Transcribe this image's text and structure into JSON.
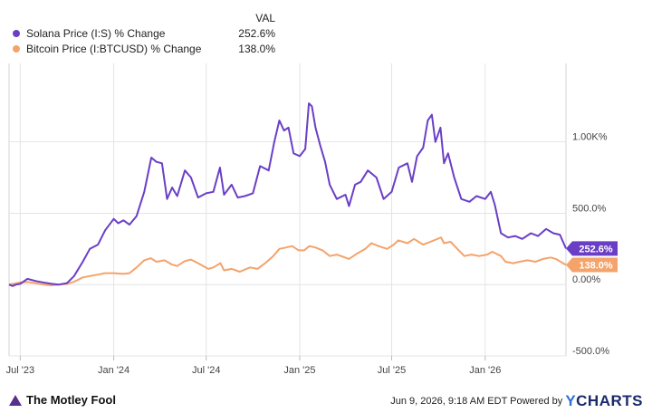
{
  "legend": {
    "header": "VAL",
    "items": [
      {
        "name": "Solana Price (I:S) % Change",
        "value": "252.6%",
        "color": "#6a3fc6"
      },
      {
        "name": "Bitcoin Price (I:BTCUSD) % Change",
        "value": "138.0%",
        "color": "#f4a36b"
      }
    ]
  },
  "footer": {
    "brand": "The Motley Fool",
    "timestamp": "Jun 9, 2026, 9:18 AM EDT",
    "powered_by": "Powered by",
    "provider": "CHARTS",
    "provider_y": "Y"
  },
  "chart_data": {
    "type": "line",
    "title": "",
    "xlabel": "",
    "ylabel": "",
    "ylim": [
      -500,
      1550
    ],
    "y_ticks": [
      {
        "value": 1000,
        "label": "1.00K%"
      },
      {
        "value": 500,
        "label": "500.0%"
      },
      {
        "value": 0,
        "label": "0.00%"
      },
      {
        "value": -500,
        "label": "-500.0%"
      }
    ],
    "x_range": [
      "2023-06-09",
      "2026-06-09"
    ],
    "x_ticks": [
      {
        "date": "2023-07-01",
        "label": "Jul '23"
      },
      {
        "date": "2024-01-01",
        "label": "Jan '24"
      },
      {
        "date": "2024-07-01",
        "label": "Jul '24"
      },
      {
        "date": "2025-01-01",
        "label": "Jan '25"
      },
      {
        "date": "2025-07-01",
        "label": "Jul '25"
      },
      {
        "date": "2026-01-01",
        "label": "Jan '26"
      }
    ],
    "grid": true,
    "series": [
      {
        "name": "Solana Price (I:S) % Change",
        "color": "#6a3fc6",
        "end_label": "252.6%",
        "points": [
          [
            "2023-06-09",
            0
          ],
          [
            "2023-06-16",
            -10
          ],
          [
            "2023-06-23",
            0
          ],
          [
            "2023-07-01",
            5
          ],
          [
            "2023-07-15",
            40
          ],
          [
            "2023-08-01",
            25
          ],
          [
            "2023-08-15",
            15
          ],
          [
            "2023-09-01",
            5
          ],
          [
            "2023-09-15",
            0
          ],
          [
            "2023-10-01",
            10
          ],
          [
            "2023-10-15",
            60
          ],
          [
            "2023-11-01",
            160
          ],
          [
            "2023-11-15",
            250
          ],
          [
            "2023-12-01",
            280
          ],
          [
            "2023-12-15",
            380
          ],
          [
            "2024-01-01",
            460
          ],
          [
            "2024-01-10",
            430
          ],
          [
            "2024-01-20",
            450
          ],
          [
            "2024-02-01",
            420
          ],
          [
            "2024-02-15",
            480
          ],
          [
            "2024-03-01",
            650
          ],
          [
            "2024-03-15",
            890
          ],
          [
            "2024-03-25",
            860
          ],
          [
            "2024-04-05",
            850
          ],
          [
            "2024-04-15",
            600
          ],
          [
            "2024-04-25",
            680
          ],
          [
            "2024-05-05",
            620
          ],
          [
            "2024-05-20",
            800
          ],
          [
            "2024-06-01",
            750
          ],
          [
            "2024-06-15",
            610
          ],
          [
            "2024-07-01",
            640
          ],
          [
            "2024-07-15",
            650
          ],
          [
            "2024-07-28",
            820
          ],
          [
            "2024-08-05",
            630
          ],
          [
            "2024-08-20",
            700
          ],
          [
            "2024-09-01",
            610
          ],
          [
            "2024-09-15",
            620
          ],
          [
            "2024-10-01",
            640
          ],
          [
            "2024-10-15",
            830
          ],
          [
            "2024-11-01",
            800
          ],
          [
            "2024-11-12",
            1000
          ],
          [
            "2024-11-22",
            1150
          ],
          [
            "2024-12-01",
            1080
          ],
          [
            "2024-12-10",
            1100
          ],
          [
            "2024-12-20",
            920
          ],
          [
            "2025-01-01",
            900
          ],
          [
            "2025-01-12",
            950
          ],
          [
            "2025-01-19",
            1270
          ],
          [
            "2025-01-25",
            1250
          ],
          [
            "2025-02-01",
            1100
          ],
          [
            "2025-02-10",
            980
          ],
          [
            "2025-02-20",
            860
          ],
          [
            "2025-03-01",
            700
          ],
          [
            "2025-03-15",
            600
          ],
          [
            "2025-04-01",
            630
          ],
          [
            "2025-04-08",
            550
          ],
          [
            "2025-04-20",
            700
          ],
          [
            "2025-05-01",
            720
          ],
          [
            "2025-05-15",
            800
          ],
          [
            "2025-06-01",
            750
          ],
          [
            "2025-06-15",
            600
          ],
          [
            "2025-07-01",
            650
          ],
          [
            "2025-07-15",
            820
          ],
          [
            "2025-08-01",
            850
          ],
          [
            "2025-08-10",
            720
          ],
          [
            "2025-08-20",
            900
          ],
          [
            "2025-09-01",
            960
          ],
          [
            "2025-09-10",
            1150
          ],
          [
            "2025-09-18",
            1190
          ],
          [
            "2025-09-25",
            1000
          ],
          [
            "2025-10-05",
            1100
          ],
          [
            "2025-10-12",
            850
          ],
          [
            "2025-10-20",
            920
          ],
          [
            "2025-11-01",
            750
          ],
          [
            "2025-11-15",
            600
          ],
          [
            "2025-12-01",
            580
          ],
          [
            "2025-12-15",
            620
          ],
          [
            "2026-01-01",
            600
          ],
          [
            "2026-01-12",
            650
          ],
          [
            "2026-01-20",
            560
          ],
          [
            "2026-02-01",
            360
          ],
          [
            "2026-02-15",
            330
          ],
          [
            "2026-03-01",
            340
          ],
          [
            "2026-03-15",
            320
          ],
          [
            "2026-04-01",
            360
          ],
          [
            "2026-04-15",
            340
          ],
          [
            "2026-05-01",
            390
          ],
          [
            "2026-05-15",
            360
          ],
          [
            "2026-05-28",
            350
          ],
          [
            "2026-06-09",
            252.6
          ]
        ]
      },
      {
        "name": "Bitcoin Price (I:BTCUSD) % Change",
        "color": "#f4a36b",
        "end_label": "138.0%",
        "points": [
          [
            "2023-06-09",
            0
          ],
          [
            "2023-07-01",
            15
          ],
          [
            "2023-07-15",
            18
          ],
          [
            "2023-08-01",
            10
          ],
          [
            "2023-08-15",
            0
          ],
          [
            "2023-09-01",
            -5
          ],
          [
            "2023-09-15",
            0
          ],
          [
            "2023-10-01",
            5
          ],
          [
            "2023-10-15",
            20
          ],
          [
            "2023-11-01",
            50
          ],
          [
            "2023-11-15",
            60
          ],
          [
            "2023-12-01",
            70
          ],
          [
            "2023-12-15",
            80
          ],
          [
            "2024-01-01",
            80
          ],
          [
            "2024-01-20",
            75
          ],
          [
            "2024-02-01",
            80
          ],
          [
            "2024-02-15",
            120
          ],
          [
            "2024-03-01",
            170
          ],
          [
            "2024-03-14",
            185
          ],
          [
            "2024-03-25",
            160
          ],
          [
            "2024-04-10",
            170
          ],
          [
            "2024-04-25",
            140
          ],
          [
            "2024-05-05",
            130
          ],
          [
            "2024-05-20",
            165
          ],
          [
            "2024-06-01",
            175
          ],
          [
            "2024-06-15",
            150
          ],
          [
            "2024-07-05",
            110
          ],
          [
            "2024-07-15",
            120
          ],
          [
            "2024-07-29",
            150
          ],
          [
            "2024-08-05",
            100
          ],
          [
            "2024-08-20",
            110
          ],
          [
            "2024-09-05",
            90
          ],
          [
            "2024-09-25",
            120
          ],
          [
            "2024-10-10",
            110
          ],
          [
            "2024-10-25",
            150
          ],
          [
            "2024-11-10",
            200
          ],
          [
            "2024-11-22",
            250
          ],
          [
            "2024-12-05",
            260
          ],
          [
            "2024-12-17",
            270
          ],
          [
            "2024-12-30",
            240
          ],
          [
            "2025-01-10",
            240
          ],
          [
            "2025-01-20",
            270
          ],
          [
            "2025-02-01",
            260
          ],
          [
            "2025-02-15",
            240
          ],
          [
            "2025-03-01",
            200
          ],
          [
            "2025-03-15",
            210
          ],
          [
            "2025-04-08",
            180
          ],
          [
            "2025-04-25",
            220
          ],
          [
            "2025-05-10",
            250
          ],
          [
            "2025-05-22",
            290
          ],
          [
            "2025-06-05",
            270
          ],
          [
            "2025-06-22",
            250
          ],
          [
            "2025-07-05",
            280
          ],
          [
            "2025-07-14",
            310
          ],
          [
            "2025-08-01",
            290
          ],
          [
            "2025-08-14",
            320
          ],
          [
            "2025-09-01",
            280
          ],
          [
            "2025-09-15",
            300
          ],
          [
            "2025-10-06",
            330
          ],
          [
            "2025-10-12",
            290
          ],
          [
            "2025-10-25",
            300
          ],
          [
            "2025-11-10",
            240
          ],
          [
            "2025-11-21",
            200
          ],
          [
            "2025-12-05",
            210
          ],
          [
            "2025-12-20",
            200
          ],
          [
            "2026-01-05",
            210
          ],
          [
            "2026-01-15",
            230
          ],
          [
            "2026-02-01",
            200
          ],
          [
            "2026-02-10",
            160
          ],
          [
            "2026-02-25",
            150
          ],
          [
            "2026-03-10",
            160
          ],
          [
            "2026-03-25",
            170
          ],
          [
            "2026-04-10",
            160
          ],
          [
            "2026-04-25",
            180
          ],
          [
            "2026-05-10",
            190
          ],
          [
            "2026-05-20",
            180
          ],
          [
            "2026-06-09",
            138
          ]
        ]
      }
    ]
  }
}
